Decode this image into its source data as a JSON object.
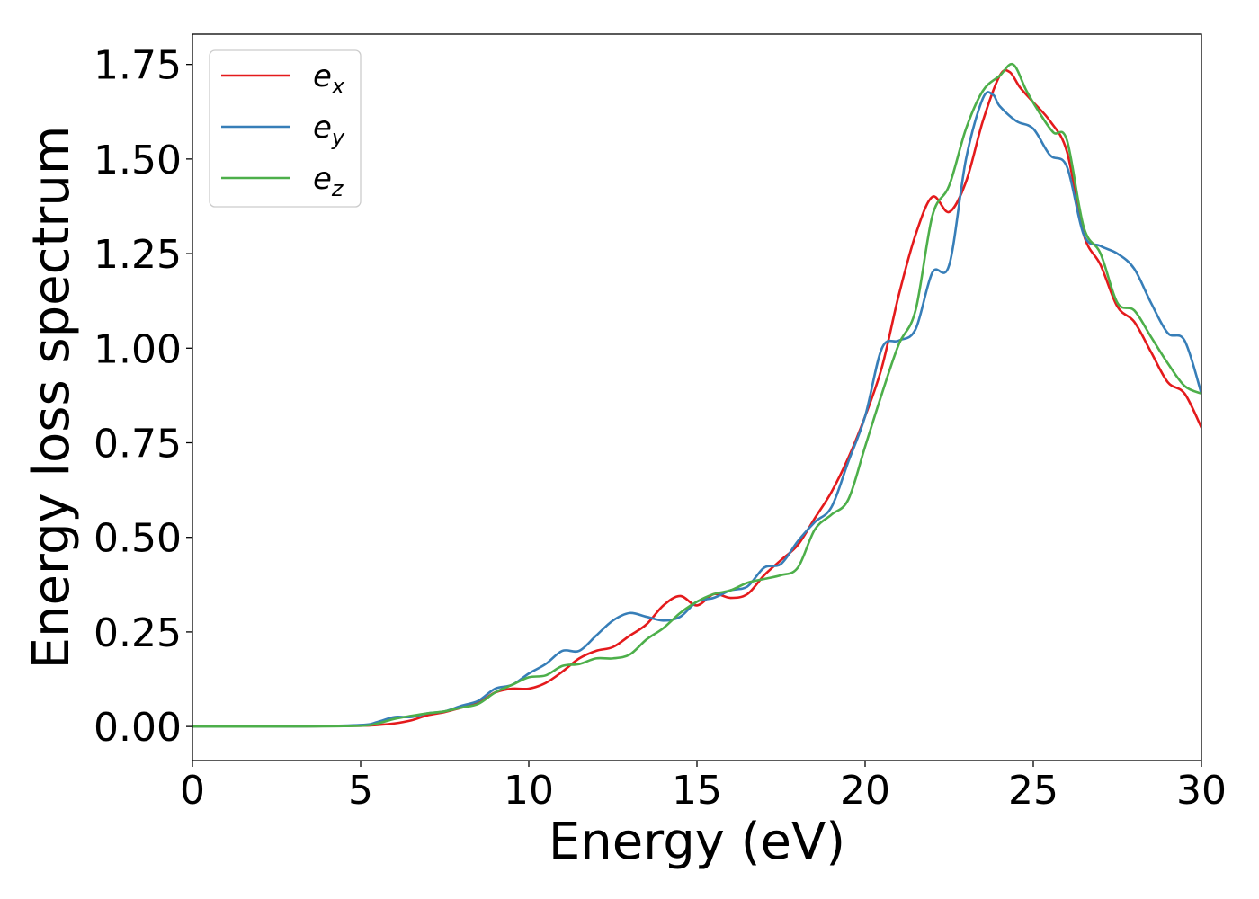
{
  "chart_data": {
    "type": "line",
    "xlabel": "Energy (eV)",
    "ylabel": "Energy loss spectrum",
    "xlim": [
      0,
      30
    ],
    "ylim": [
      -0.09,
      1.83
    ],
    "xticks": [
      0,
      5,
      10,
      15,
      20,
      25,
      30
    ],
    "xtick_labels": [
      "0",
      "5",
      "10",
      "15",
      "20",
      "25",
      "30"
    ],
    "yticks": [
      0.0,
      0.25,
      0.5,
      0.75,
      1.0,
      1.25,
      1.5,
      1.75
    ],
    "ytick_labels": [
      "0.00",
      "0.25",
      "0.50",
      "0.75",
      "1.00",
      "1.25",
      "1.50",
      "1.75"
    ],
    "grid": false,
    "legend_position": "top-left",
    "series": [
      {
        "name": "e_x",
        "legend_base": "e",
        "legend_sub": "x",
        "color": "#e41a1c",
        "x": [
          0,
          3,
          5,
          5.5,
          6,
          6.5,
          7,
          7.5,
          8,
          8.5,
          9,
          9.5,
          10,
          10.5,
          11,
          11.5,
          12,
          12.5,
          13,
          13.5,
          14,
          14.5,
          15,
          15.5,
          16,
          16.5,
          17,
          17.5,
          18,
          18.5,
          19,
          19.5,
          20,
          20.5,
          21,
          21.5,
          22,
          22.5,
          23,
          23.5,
          24,
          24.3,
          24.6,
          25,
          25.5,
          26,
          26.5,
          27,
          27.5,
          28,
          28.5,
          29,
          29.5,
          30
        ],
        "y": [
          0,
          0,
          0.002,
          0.004,
          0.008,
          0.016,
          0.03,
          0.038,
          0.05,
          0.062,
          0.09,
          0.1,
          0.1,
          0.115,
          0.145,
          0.18,
          0.2,
          0.21,
          0.24,
          0.27,
          0.32,
          0.345,
          0.32,
          0.35,
          0.34,
          0.35,
          0.4,
          0.44,
          0.48,
          0.55,
          0.62,
          0.71,
          0.82,
          0.95,
          1.14,
          1.3,
          1.4,
          1.36,
          1.44,
          1.6,
          1.72,
          1.73,
          1.69,
          1.65,
          1.6,
          1.52,
          1.3,
          1.22,
          1.11,
          1.07,
          0.99,
          0.91,
          0.88,
          0.79
        ]
      },
      {
        "name": "e_y",
        "legend_base": "e",
        "legend_sub": "y",
        "color": "#377eb8",
        "x": [
          0,
          3,
          5,
          5.5,
          6,
          6.5,
          7,
          7.5,
          8,
          8.5,
          9,
          9.5,
          10,
          10.5,
          11,
          11.5,
          12,
          12.5,
          13,
          13.5,
          14,
          14.5,
          15,
          15.5,
          16,
          16.5,
          17,
          17.5,
          18,
          18.5,
          19,
          19.5,
          20,
          20.5,
          21,
          21.5,
          22,
          22.5,
          23,
          23.5,
          23.8,
          24,
          24.5,
          25,
          25.5,
          26,
          26.5,
          27,
          27.5,
          28,
          28.5,
          29,
          29.5,
          30
        ],
        "y": [
          0,
          0,
          0.004,
          0.012,
          0.025,
          0.025,
          0.035,
          0.04,
          0.055,
          0.068,
          0.1,
          0.11,
          0.14,
          0.165,
          0.2,
          0.2,
          0.24,
          0.28,
          0.3,
          0.29,
          0.28,
          0.29,
          0.33,
          0.34,
          0.36,
          0.37,
          0.42,
          0.43,
          0.49,
          0.54,
          0.58,
          0.7,
          0.82,
          1.0,
          1.02,
          1.05,
          1.2,
          1.22,
          1.5,
          1.66,
          1.67,
          1.64,
          1.6,
          1.58,
          1.51,
          1.48,
          1.3,
          1.27,
          1.25,
          1.21,
          1.12,
          1.04,
          1.02,
          0.88
        ]
      },
      {
        "name": "e_z",
        "legend_base": "e",
        "legend_sub": "z",
        "color": "#4daf4a",
        "x": [
          0,
          3,
          5,
          5.5,
          6,
          6.5,
          7,
          7.5,
          8,
          8.5,
          9,
          9.5,
          10,
          10.5,
          11,
          11.5,
          12,
          12.5,
          13,
          13.5,
          14,
          14.5,
          15,
          15.5,
          16,
          16.5,
          17,
          17.5,
          18,
          18.5,
          19,
          19.5,
          20,
          20.5,
          21,
          21.5,
          22,
          22.5,
          23,
          23.5,
          24,
          24.4,
          24.8,
          25.2,
          25.6,
          26,
          26.5,
          27,
          27.5,
          28,
          28.5,
          29,
          29.5,
          30
        ],
        "y": [
          0,
          0,
          0.002,
          0.008,
          0.02,
          0.028,
          0.035,
          0.04,
          0.05,
          0.06,
          0.09,
          0.11,
          0.13,
          0.135,
          0.16,
          0.165,
          0.18,
          0.18,
          0.19,
          0.23,
          0.26,
          0.3,
          0.33,
          0.35,
          0.36,
          0.38,
          0.39,
          0.4,
          0.42,
          0.52,
          0.56,
          0.6,
          0.74,
          0.88,
          1.01,
          1.1,
          1.35,
          1.43,
          1.58,
          1.68,
          1.72,
          1.75,
          1.68,
          1.62,
          1.57,
          1.55,
          1.32,
          1.25,
          1.12,
          1.1,
          1.03,
          0.96,
          0.9,
          0.88
        ]
      }
    ]
  }
}
